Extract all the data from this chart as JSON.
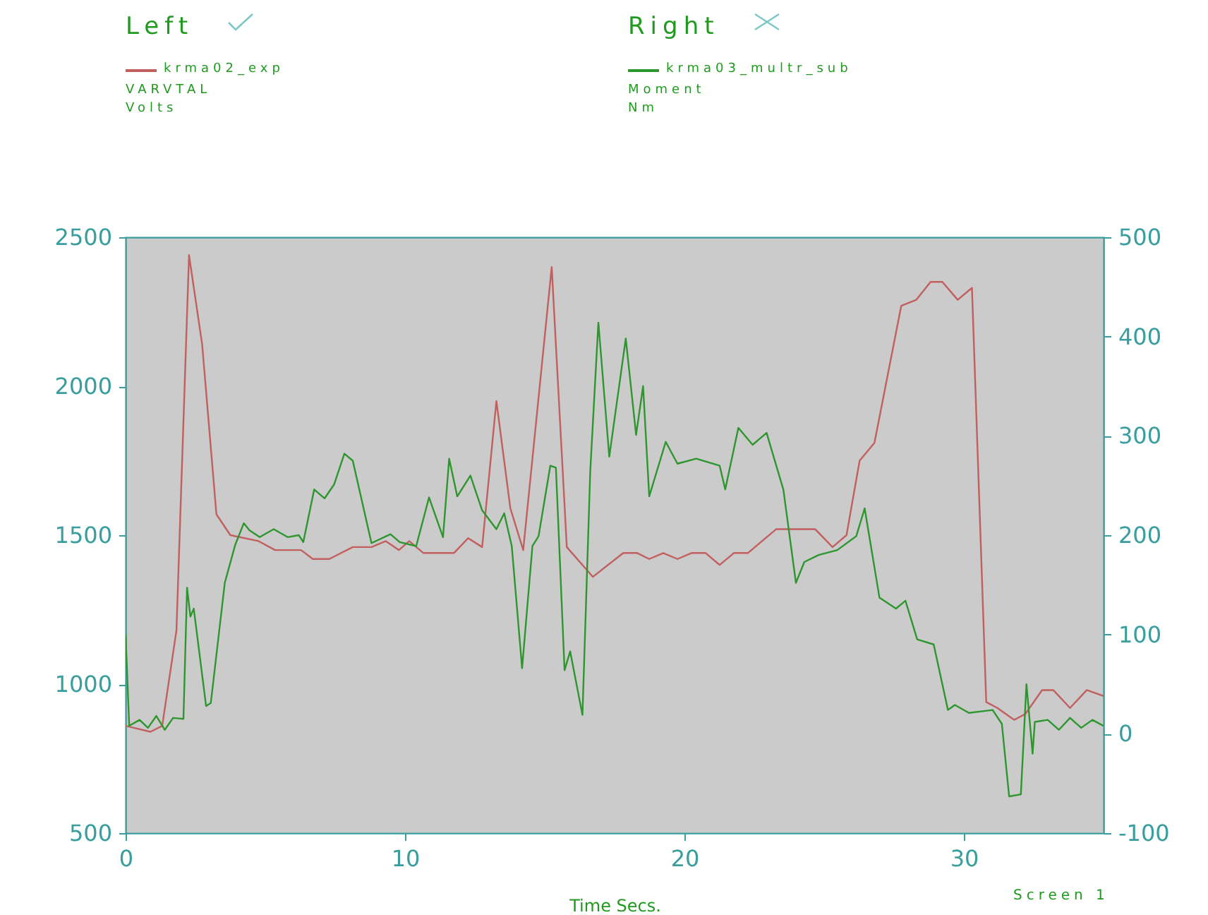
{
  "chart_data": {
    "type": "line",
    "xlabel": "Time Secs.",
    "annotations": [
      "Left",
      "VARVTAL",
      "Volts",
      "Right",
      "Moment",
      "Nm",
      "Screen 1"
    ],
    "series": [
      {
        "name": "krma02_exp",
        "color": "#c25f5f",
        "x": [
          0,
          0.89,
          1.31,
          1.82,
          2.27,
          2.74,
          3.25,
          3.75,
          4.76,
          5.35,
          6.28,
          6.7,
          7.29,
          8.13,
          8.8,
          9.31,
          9.78,
          10.15,
          10.66,
          11.75,
          12.26,
          12.76,
          13.27,
          13.77,
          14.23,
          15.25,
          15.79,
          16.72,
          17.81,
          18.31,
          18.74,
          19.24,
          19.75,
          20.25,
          20.76,
          21.26,
          21.77,
          22.27,
          23.28,
          24.68,
          25.3,
          25.8,
          26.27,
          26.8,
          27.76,
          28.3,
          28.81,
          29.23,
          29.78,
          30.29,
          30.8,
          31.2,
          31.8,
          32.2,
          32.8,
          33.2,
          33.8,
          34.4,
          35
        ],
        "values": [
          860,
          840,
          860,
          1180,
          2440,
          2140,
          1570,
          1500,
          1480,
          1450,
          1450,
          1420,
          1420,
          1460,
          1460,
          1480,
          1450,
          1480,
          1440,
          1440,
          1490,
          1460,
          1950,
          1590,
          1450,
          2400,
          1460,
          1360,
          1440,
          1440,
          1420,
          1440,
          1420,
          1440,
          1440,
          1400,
          1440,
          1440,
          1520,
          1520,
          1460,
          1500,
          1750,
          1810,
          2270,
          2290,
          2350,
          2350,
          2290,
          2330,
          940,
          920,
          880,
          900,
          980,
          980,
          920,
          980,
          960
        ]
      },
      {
        "name": "krma03_multr_sub",
        "color": "#2e962e",
        "axis": "y2",
        "x": [
          0,
          0.13,
          0.5,
          0.8,
          1.1,
          1.4,
          1.7,
          2.07,
          2.2,
          2.32,
          2.44,
          2.88,
          3.05,
          3.55,
          3.92,
          4.23,
          4.43,
          4.8,
          5.3,
          5.8,
          6.2,
          6.36,
          6.75,
          7.12,
          7.46,
          7.83,
          8.13,
          8.8,
          9.48,
          9.81,
          10.4,
          10.86,
          11.36,
          11.58,
          11.87,
          12.34,
          12.76,
          13.27,
          13.55,
          13.82,
          14.19,
          14.56,
          14.78,
          15.2,
          15.4,
          15.71,
          15.91,
          16.35,
          16.63,
          16.92,
          17.31,
          17.9,
          18.27,
          18.52,
          18.74,
          19.33,
          19.75,
          20.42,
          21.26,
          21.46,
          21.93,
          22.44,
          22.94,
          23.54,
          23.99,
          24.29,
          24.8,
          25.47,
          26.15,
          26.45,
          26.98,
          27.57,
          27.91,
          28.33,
          28.92,
          29.43,
          29.68,
          30.18,
          31.03,
          31.36,
          31.62,
          32.04,
          32.24,
          32.46,
          32.54,
          33,
          33.4,
          33.8,
          34.2,
          34.6,
          35
        ],
        "values": [
          100,
          8,
          14,
          6,
          18,
          4,
          16,
          15,
          147,
          118,
          126,
          28,
          31,
          152,
          190,
          212,
          205,
          198,
          206,
          198,
          200,
          193,
          246,
          237,
          251,
          282,
          275,
          192,
          201,
          193,
          189,
          238,
          198,
          277,
          239,
          260,
          225,
          206,
          222,
          189,
          66,
          189,
          199,
          270,
          268,
          64,
          83,
          19,
          265,
          414,
          279,
          398,
          301,
          350,
          239,
          294,
          272,
          277,
          270,
          246,
          308,
          291,
          303,
          246,
          152,
          173,
          180,
          185,
          199,
          227,
          137,
          126,
          134,
          95,
          90,
          24,
          29,
          21,
          24,
          10,
          -63,
          -61,
          50,
          -20,
          12,
          14,
          4,
          16,
          6,
          14,
          8
        ]
      }
    ],
    "xlim": [
      0,
      35
    ],
    "xticks": [
      0,
      10,
      20,
      30
    ],
    "ylim": [
      500,
      2500
    ],
    "yticks": [
      500,
      1000,
      1500,
      2000,
      2500
    ],
    "y2lim": [
      -100,
      500
    ],
    "y2ticks": [
      -100,
      0,
      100,
      200,
      300,
      400,
      500
    ],
    "legend": "top"
  }
}
